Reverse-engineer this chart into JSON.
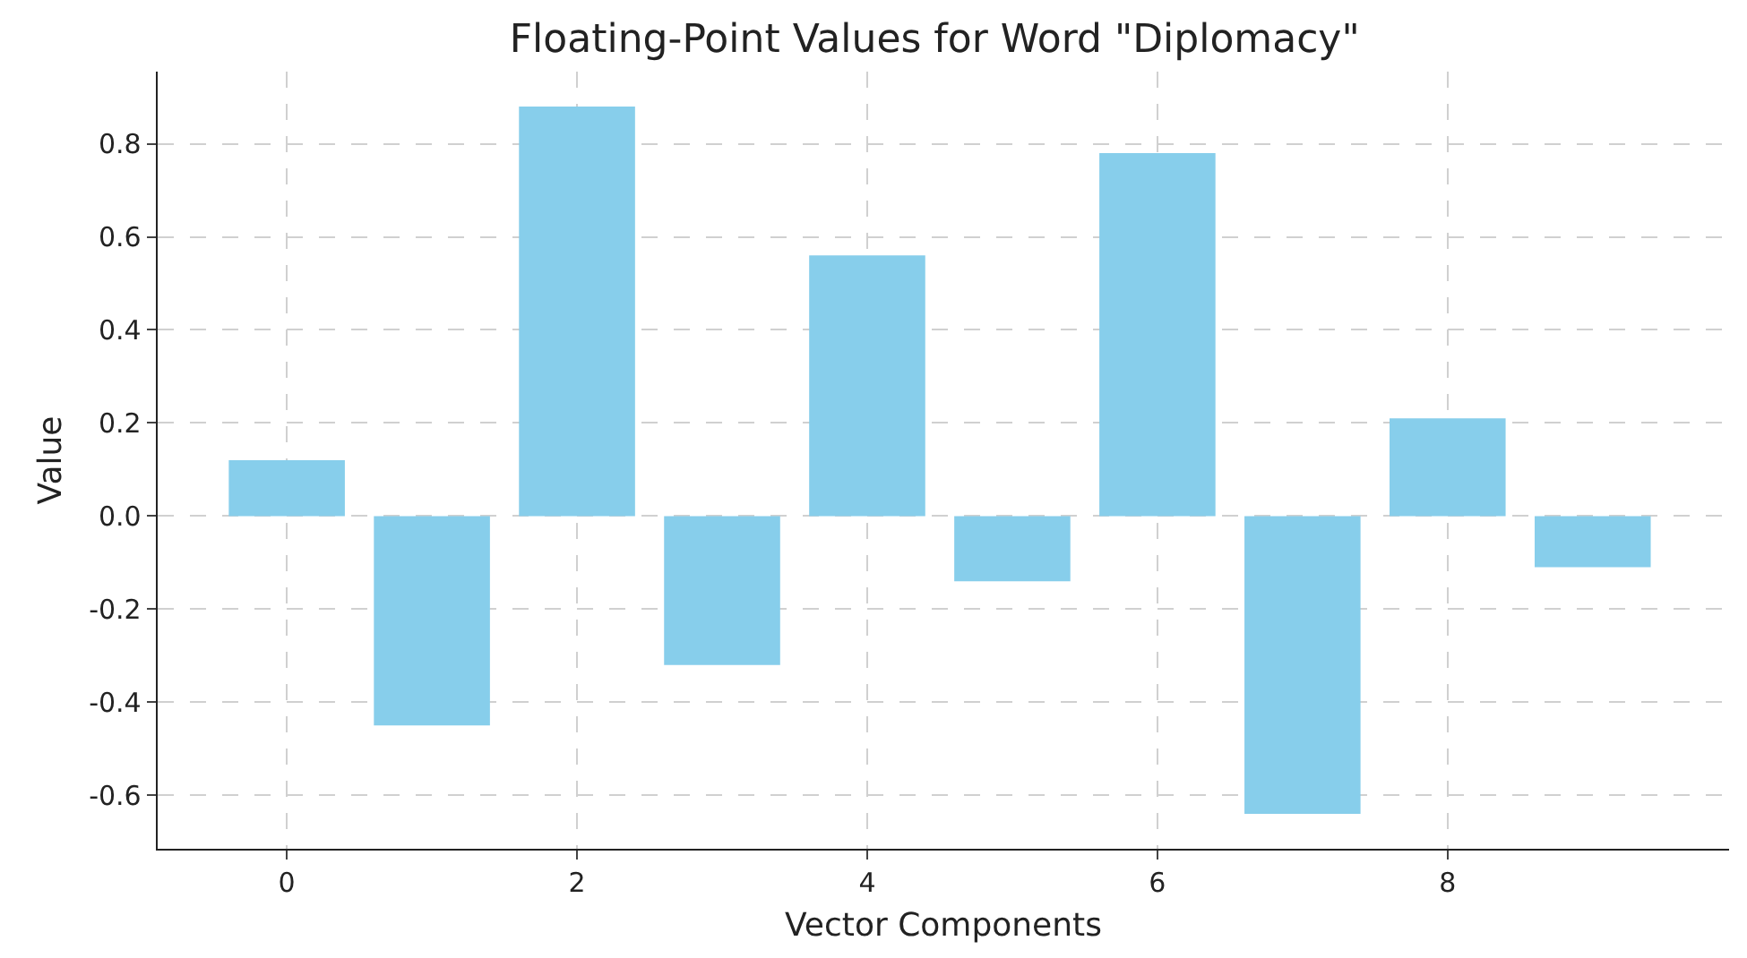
{
  "chart_data": {
    "type": "bar",
    "title": "Floating-Point Values for Word \"Diplomacy\"",
    "xlabel": "Vector Components",
    "ylabel": "Value",
    "x": [
      0,
      1,
      2,
      3,
      4,
      5,
      6,
      7,
      8,
      9
    ],
    "values": [
      0.12,
      -0.45,
      0.88,
      -0.32,
      0.56,
      -0.14,
      0.78,
      -0.64,
      0.21,
      -0.11
    ],
    "color": "#87ceeb",
    "xlim": [
      -0.89,
      9.94
    ],
    "xticks": [
      0,
      2,
      4,
      6,
      8
    ],
    "ylim": [
      -0.715,
      0.955
    ],
    "yticks": [
      -0.6,
      -0.4,
      -0.2,
      {
        "value": 0,
        "label": "0.0"
      },
      0.2,
      0.4,
      0.6,
      0.8
    ],
    "grid": true
  }
}
